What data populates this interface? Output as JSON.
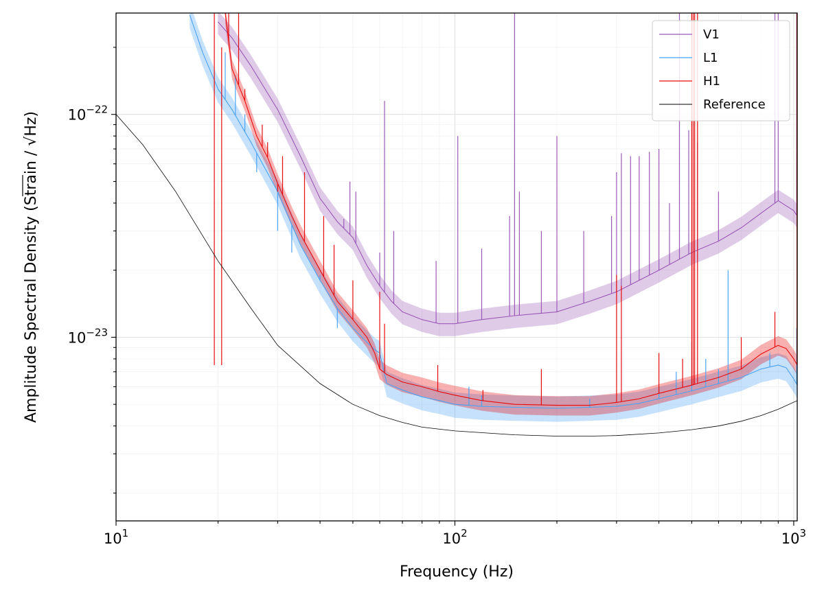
{
  "chart_data": {
    "type": "line",
    "title": "",
    "xlabel": "Frequency (Hz)",
    "ylabel_prefix": "Amplitude Spectral Density (Strain / ",
    "ylabel_radical": "Hz",
    "ylabel_suffix": ")",
    "xscale": "log",
    "yscale": "log",
    "xlim": [
      10,
      1024
    ],
    "ylim": [
      1.5e-24,
      2.85e-22
    ],
    "grid": true,
    "legend_position": "top-right",
    "x_ticks": [
      {
        "value": 10,
        "base": "10",
        "exp": "1"
      },
      {
        "value": 100,
        "base": "10",
        "exp": "2"
      },
      {
        "value": 1000,
        "base": "10",
        "exp": "3"
      }
    ],
    "y_ticks": [
      {
        "value": 1e-22,
        "base": "10",
        "exp": "−22"
      },
      {
        "value": 1e-23,
        "base": "10",
        "exp": "−23"
      }
    ],
    "series": [
      {
        "name": "V1",
        "color": "#9b59b6",
        "band_rel": 0.12,
        "points": [
          [
            20,
            2.6e-22
          ],
          [
            22,
            2.2e-22
          ],
          [
            25,
            1.65e-22
          ],
          [
            30,
            1.05e-22
          ],
          [
            35,
            6.5e-23
          ],
          [
            40,
            4.2e-23
          ],
          [
            45,
            3.3e-23
          ],
          [
            50,
            2.8e-23
          ],
          [
            55,
            2.1e-23
          ],
          [
            60,
            1.7e-23
          ],
          [
            65,
            1.45e-23
          ],
          [
            70,
            1.3e-23
          ],
          [
            80,
            1.2e-23
          ],
          [
            90,
            1.15e-23
          ],
          [
            100,
            1.15e-23
          ],
          [
            120,
            1.2e-23
          ],
          [
            150,
            1.25e-23
          ],
          [
            200,
            1.3e-23
          ],
          [
            250,
            1.45e-23
          ],
          [
            300,
            1.6e-23
          ],
          [
            400,
            2e-23
          ],
          [
            500,
            2.4e-23
          ],
          [
            600,
            2.7e-23
          ],
          [
            700,
            3.1e-23
          ],
          [
            800,
            3.6e-23
          ],
          [
            900,
            4.1e-23
          ],
          [
            1000,
            3.7e-23
          ],
          [
            1024,
            3.5e-23
          ]
        ],
        "lines": [
          [
            47,
            3.4e-23
          ],
          [
            49,
            5e-23
          ],
          [
            51,
            4.5e-23
          ],
          [
            60,
            2.4e-23
          ],
          [
            62,
            1.15e-22
          ],
          [
            66,
            3e-23
          ],
          [
            88,
            2.2e-23
          ],
          [
            102,
            8e-23
          ],
          [
            120,
            2.5e-23
          ],
          [
            145,
            3.5e-23
          ],
          [
            150,
            2.85e-22
          ],
          [
            155,
            4.5e-23
          ],
          [
            180,
            3e-23
          ],
          [
            200,
            8e-23
          ],
          [
            240,
            3e-23
          ],
          [
            290,
            3.5e-23
          ],
          [
            300,
            5.5e-23
          ],
          [
            310,
            6.7e-23
          ],
          [
            330,
            6.5e-23
          ],
          [
            350,
            6.5e-23
          ],
          [
            375,
            6.8e-23
          ],
          [
            400,
            7e-23
          ],
          [
            430,
            4e-23
          ],
          [
            460,
            2.85e-22
          ],
          [
            490,
            8.5e-23
          ],
          [
            520,
            7.5e-23
          ],
          [
            600,
            4.5e-23
          ],
          [
            880,
            2.85e-22
          ],
          [
            900,
            2.85e-22
          ],
          [
            1020,
            2.85e-22
          ]
        ]
      },
      {
        "name": "L1",
        "color": "#4ba3f5",
        "band_rel": 0.13,
        "points": [
          [
            16.5,
            2.8e-22
          ],
          [
            18,
            1.9e-22
          ],
          [
            20,
            1.3e-22
          ],
          [
            22,
            1.05e-22
          ],
          [
            25,
            7.5e-23
          ],
          [
            30,
            4.5e-23
          ],
          [
            35,
            2.6e-23
          ],
          [
            40,
            1.8e-23
          ],
          [
            45,
            1.35e-23
          ],
          [
            50,
            1.1e-23
          ],
          [
            55,
            9.5e-24
          ],
          [
            58,
            8.8e-24
          ],
          [
            60,
            8.5e-24
          ],
          [
            63,
            6.2e-24
          ],
          [
            70,
            5.8e-24
          ],
          [
            80,
            5.4e-24
          ],
          [
            90,
            5.2e-24
          ],
          [
            100,
            5e-24
          ],
          [
            120,
            4.9e-24
          ],
          [
            150,
            4.85e-24
          ],
          [
            200,
            4.8e-24
          ],
          [
            250,
            4.85e-24
          ],
          [
            300,
            4.9e-24
          ],
          [
            350,
            5.05e-24
          ],
          [
            400,
            5.3e-24
          ],
          [
            500,
            5.75e-24
          ],
          [
            600,
            6.2e-24
          ],
          [
            700,
            6.6e-24
          ],
          [
            800,
            7.2e-24
          ],
          [
            900,
            7.5e-24
          ],
          [
            950,
            7.3e-24
          ],
          [
            1000,
            6.5e-24
          ],
          [
            1024,
            6.1e-24
          ]
        ],
        "lines": [
          [
            21,
            1.9e-22
          ],
          [
            22.5,
            1.5e-22
          ],
          [
            24,
            1e-22
          ],
          [
            26,
            5.5e-23
          ],
          [
            30,
            3e-23
          ],
          [
            33,
            2.4e-23
          ],
          [
            40,
            1.9e-23
          ],
          [
            45,
            1.1e-23
          ],
          [
            60,
            9e-24
          ],
          [
            110,
            6e-24
          ],
          [
            120,
            5.5e-24
          ],
          [
            250,
            5.3e-24
          ],
          [
            400,
            6e-24
          ],
          [
            450,
            7e-24
          ],
          [
            500,
            9.5e-24
          ],
          [
            550,
            8e-24
          ],
          [
            600,
            7.2e-24
          ],
          [
            640,
            2e-23
          ],
          [
            850,
            8.5e-24
          ],
          [
            1020,
            1.1e-23
          ]
        ]
      },
      {
        "name": "H1",
        "color": "#e8090b",
        "band_rel": 0.1,
        "points": [
          [
            21,
            2.85e-22
          ],
          [
            22,
            1.6e-22
          ],
          [
            24,
            1.15e-22
          ],
          [
            26,
            8e-23
          ],
          [
            28,
            6.4e-23
          ],
          [
            30,
            4.9e-23
          ],
          [
            33,
            3.5e-23
          ],
          [
            35,
            2.9e-23
          ],
          [
            40,
            2e-23
          ],
          [
            45,
            1.45e-23
          ],
          [
            50,
            1.2e-23
          ],
          [
            55,
            1e-23
          ],
          [
            58,
            8.5e-24
          ],
          [
            60,
            7.2e-24
          ],
          [
            63,
            6.8e-24
          ],
          [
            70,
            6.3e-24
          ],
          [
            80,
            6e-24
          ],
          [
            90,
            5.7e-24
          ],
          [
            100,
            5.5e-24
          ],
          [
            120,
            5.2e-24
          ],
          [
            150,
            5e-24
          ],
          [
            200,
            4.95e-24
          ],
          [
            250,
            4.95e-24
          ],
          [
            300,
            5.1e-24
          ],
          [
            350,
            5.3e-24
          ],
          [
            400,
            5.6e-24
          ],
          [
            500,
            6.1e-24
          ],
          [
            600,
            6.6e-24
          ],
          [
            700,
            7.2e-24
          ],
          [
            800,
            8.4e-24
          ],
          [
            900,
            9.2e-24
          ],
          [
            950,
            8.9e-24
          ],
          [
            1000,
            8e-24
          ],
          [
            1024,
            7.5e-24
          ]
        ],
        "lines": [
          [
            19.5,
            2.85e-22
          ],
          [
            20.5,
            2e-22
          ],
          [
            21.5,
            2.85e-22
          ],
          [
            23,
            2.85e-22
          ],
          [
            24,
            1.3e-22
          ],
          [
            27,
            9e-23
          ],
          [
            28,
            7.5e-23
          ],
          [
            30,
            4.5e-23
          ],
          [
            31,
            6.5e-23
          ],
          [
            36,
            5.5e-23
          ],
          [
            41,
            3.5e-23
          ],
          [
            44,
            2.6e-23
          ],
          [
            50,
            1.8e-23
          ],
          [
            60,
            1.6e-23
          ],
          [
            62,
            1.15e-23
          ],
          [
            89,
            7.5e-24
          ],
          [
            121,
            5.8e-24
          ],
          [
            180,
            7.2e-24
          ],
          [
            300,
            1.9e-23
          ],
          [
            310,
            1.7e-23
          ],
          [
            400,
            8.5e-24
          ],
          [
            470,
            8e-24
          ],
          [
            500,
            2.85e-22
          ],
          [
            505,
            2.85e-22
          ],
          [
            510,
            2.85e-22
          ],
          [
            520,
            2.85e-22
          ],
          [
            700,
            1e-23
          ],
          [
            880,
            1.3e-23
          ],
          [
            1022,
            2.85e-22
          ]
        ]
      },
      {
        "name": "Reference",
        "color": "#000000",
        "band_rel": 0,
        "points": [
          [
            10,
            1e-22
          ],
          [
            12,
            7.3e-23
          ],
          [
            15,
            4.5e-23
          ],
          [
            20,
            2.2e-23
          ],
          [
            25,
            1.35e-23
          ],
          [
            30,
            9.2e-24
          ],
          [
            40,
            6.2e-24
          ],
          [
            50,
            5e-24
          ],
          [
            60,
            4.45e-24
          ],
          [
            70,
            4.15e-24
          ],
          [
            80,
            3.95e-24
          ],
          [
            100,
            3.8e-24
          ],
          [
            150,
            3.65e-24
          ],
          [
            200,
            3.6e-24
          ],
          [
            250,
            3.6e-24
          ],
          [
            300,
            3.62e-24
          ],
          [
            400,
            3.72e-24
          ],
          [
            500,
            3.85e-24
          ],
          [
            600,
            4e-24
          ],
          [
            700,
            4.2e-24
          ],
          [
            800,
            4.45e-24
          ],
          [
            900,
            4.75e-24
          ],
          [
            1024,
            5.2e-24
          ]
        ],
        "lines": []
      }
    ]
  }
}
